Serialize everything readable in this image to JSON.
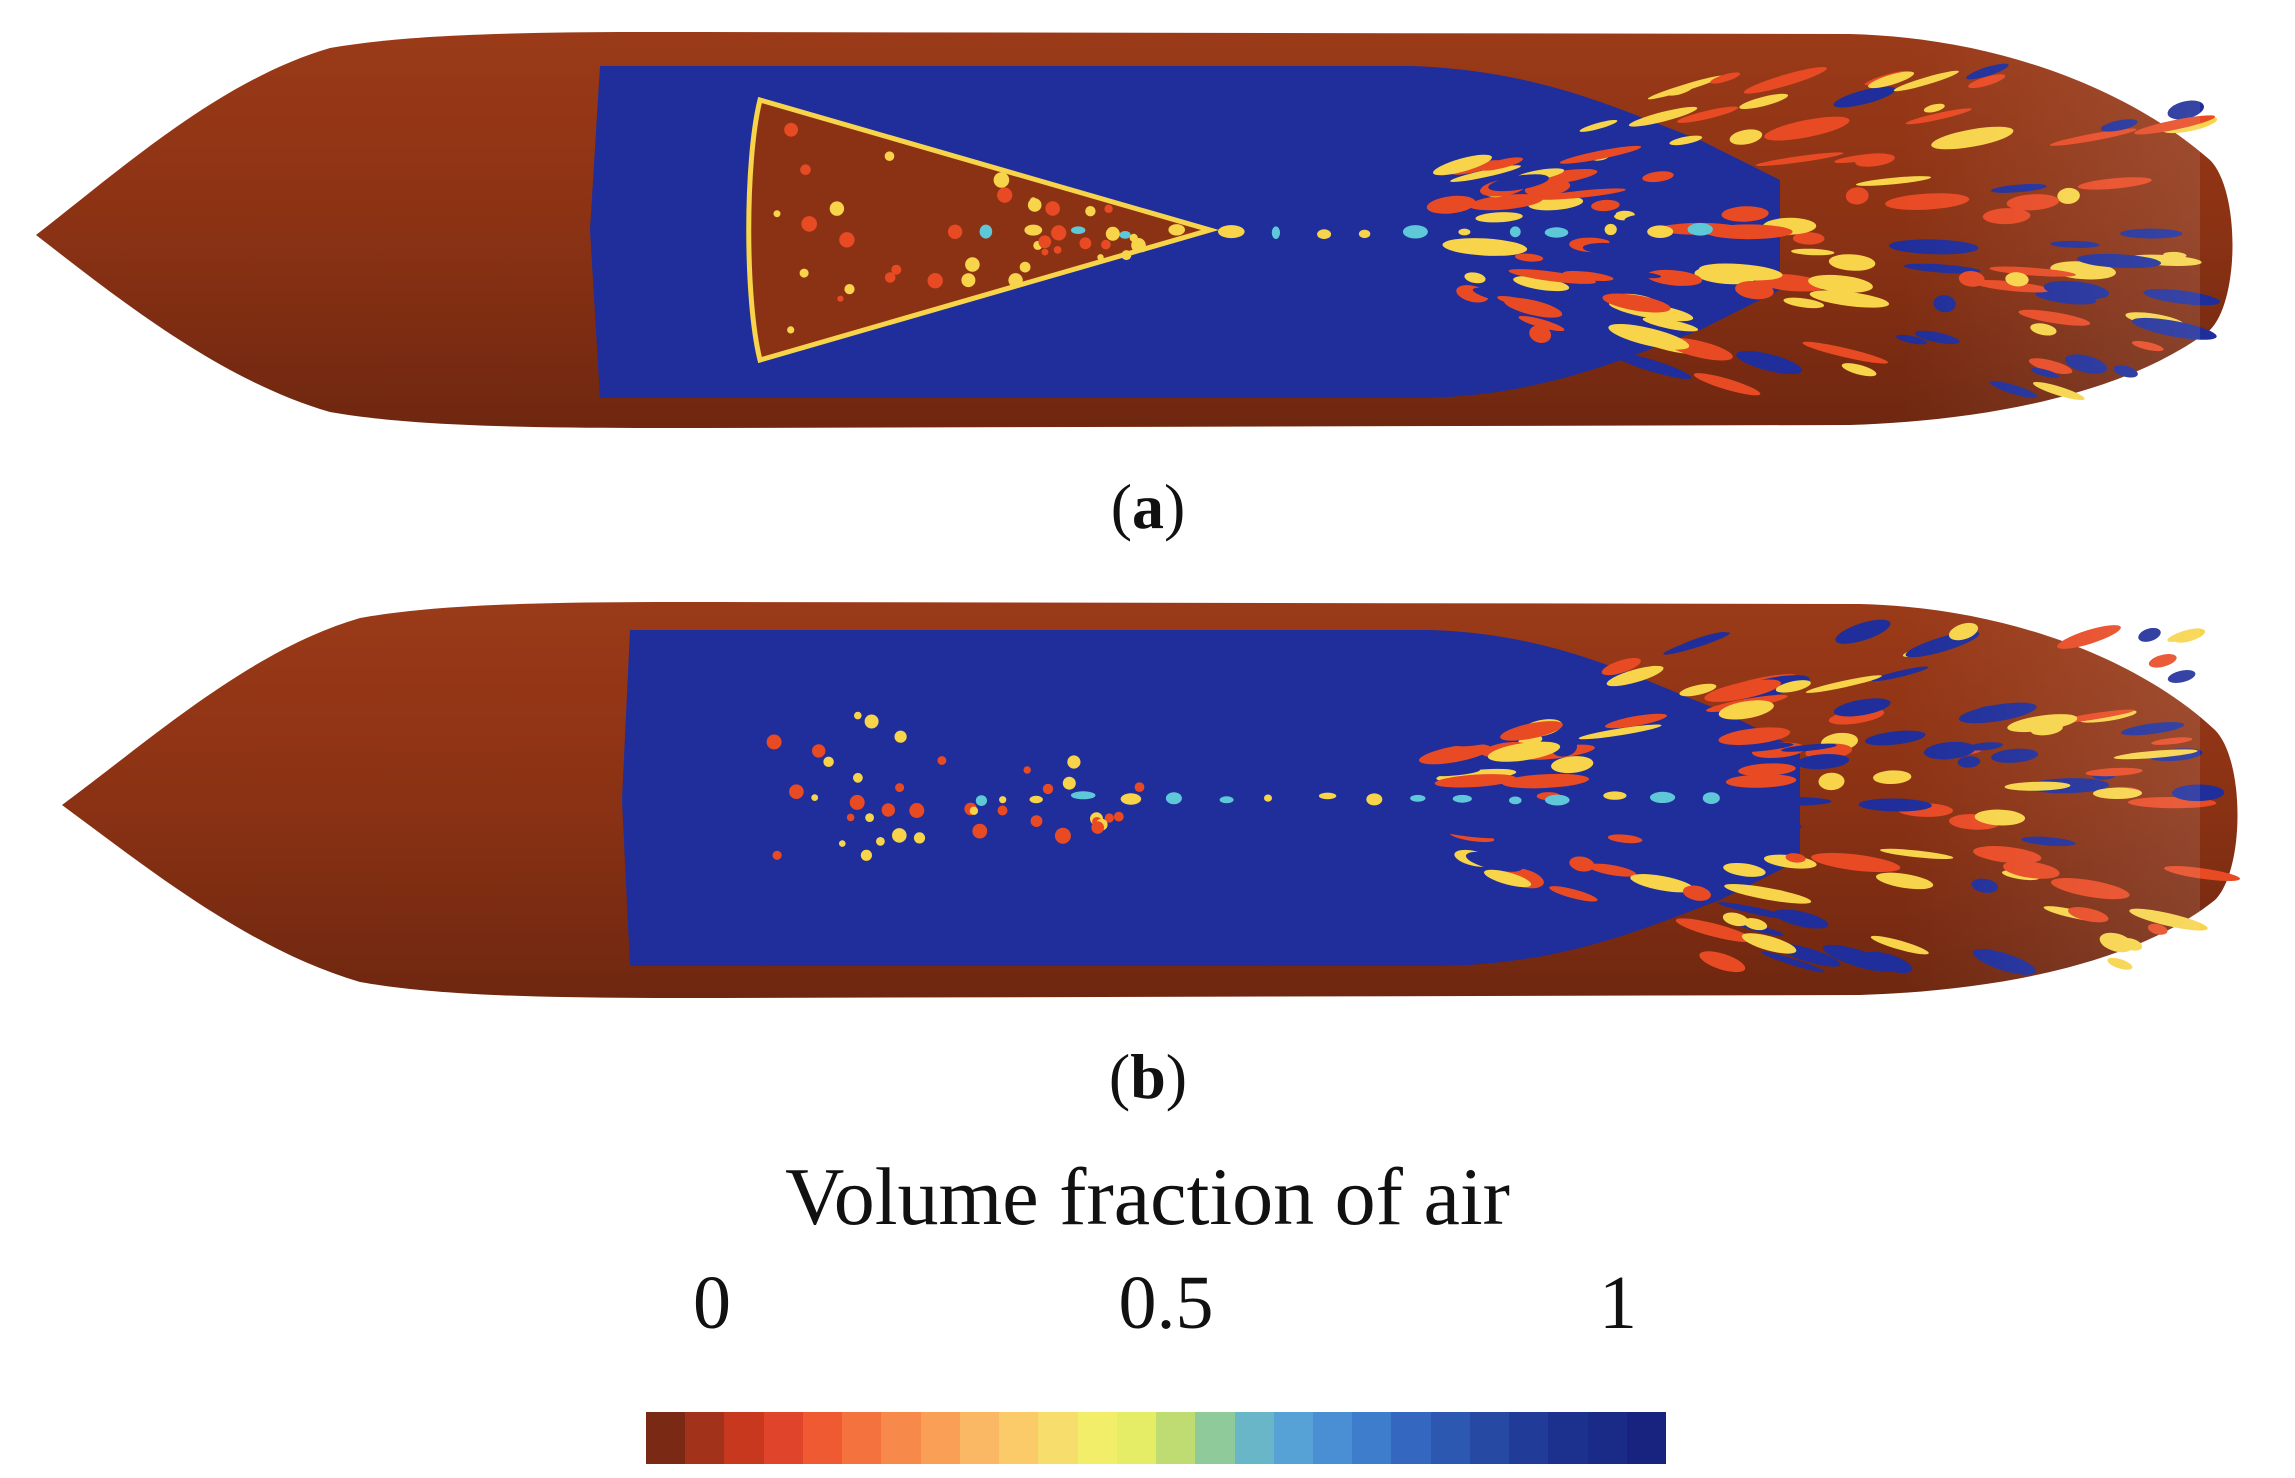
{
  "panels": [
    {
      "id": "a",
      "caption_open": "(",
      "caption_letter": "a",
      "caption_close": ")"
    },
    {
      "id": "b",
      "caption_open": "(",
      "caption_letter": "b",
      "caption_close": ")"
    }
  ],
  "legend": {
    "title": "Volume fraction of air",
    "ticks": [
      "0",
      "0.5",
      "1"
    ],
    "colors": [
      "#7a2a14",
      "#a3321a",
      "#c8381f",
      "#e0442a",
      "#ef5a33",
      "#f4723e",
      "#f7894a",
      "#f9a056",
      "#fab864",
      "#fbcb6a",
      "#f7de6c",
      "#f3ee6a",
      "#e5ec66",
      "#bfdc72",
      "#8fcb9a",
      "#68b6c8",
      "#56a2d6",
      "#4a8ed4",
      "#3e7ccc",
      "#3468c0",
      "#2c58b2",
      "#2649a4",
      "#213c98",
      "#1c318e",
      "#192a87",
      "#17237f"
    ]
  },
  "colors": {
    "hull": "#8b3214",
    "water": "#1f2e9a",
    "highlight": "#f7d44a",
    "spot": "#e84a24",
    "cyan": "#5ec8d8"
  }
}
